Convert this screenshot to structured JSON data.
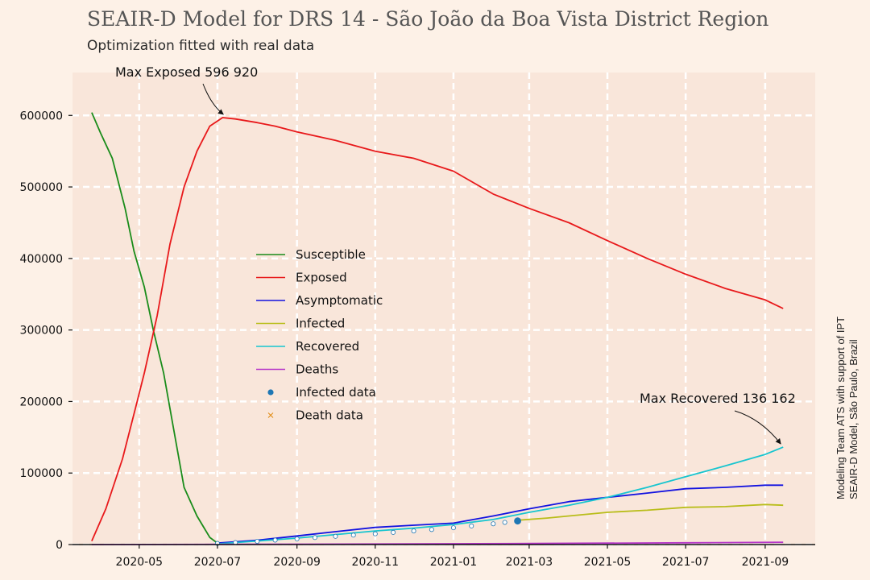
{
  "chart_data": {
    "type": "line",
    "title": "SEAIR-D Model for DRS 14 - São João da Boa Vista District Region",
    "subtitle": "Optimization fitted with real data",
    "xlabel": "",
    "ylabel": "",
    "x_ticks": [
      "2020-05",
      "2020-07",
      "2020-09",
      "2020-11",
      "2021-01",
      "2021-03",
      "2021-05",
      "2021-07",
      "2021-09"
    ],
    "y_ticks": [
      "0",
      "100000",
      "200000",
      "300000",
      "400000",
      "500000",
      "600000"
    ],
    "xlim": [
      "2020-03-10",
      "2021-10-10"
    ],
    "ylim": [
      0,
      660000
    ],
    "grid": true,
    "legend_position": "center-left",
    "series": [
      {
        "name": "Susceptible",
        "color": "#1a8c1a",
        "kind": "line",
        "x": [
          "2020-03-25",
          "2020-04-01",
          "2020-04-10",
          "2020-04-20",
          "2020-04-27",
          "2020-05-05",
          "2020-05-12",
          "2020-05-20",
          "2020-05-27",
          "2020-06-05",
          "2020-06-15",
          "2020-06-25",
          "2020-07-01"
        ],
        "y": [
          604000,
          575000,
          540000,
          470000,
          410000,
          360000,
          300000,
          240000,
          170000,
          80000,
          40000,
          10000,
          2000
        ]
      },
      {
        "name": "Exposed",
        "color": "#e8191b",
        "kind": "line",
        "x": [
          "2020-03-25",
          "2020-04-05",
          "2020-04-18",
          "2020-04-28",
          "2020-05-05",
          "2020-05-15",
          "2020-05-25",
          "2020-06-05",
          "2020-06-15",
          "2020-06-25",
          "2020-07-05",
          "2020-07-15",
          "2020-08-01",
          "2020-08-15",
          "2020-09-01",
          "2020-10-01",
          "2020-11-01",
          "2020-12-01",
          "2021-01-01",
          "2021-02-01",
          "2021-03-01",
          "2021-04-01",
          "2021-05-01",
          "2021-06-01",
          "2021-07-01",
          "2021-08-01",
          "2021-09-01",
          "2021-09-15"
        ],
        "y": [
          5000,
          50000,
          120000,
          190000,
          240000,
          320000,
          420000,
          500000,
          550000,
          585000,
          596920,
          595000,
          590000,
          585000,
          577000,
          565000,
          550000,
          540000,
          522000,
          490000,
          470000,
          450000,
          425000,
          400000,
          378000,
          358000,
          342000,
          330000
        ]
      },
      {
        "name": "Asymptomatic",
        "color": "#1212e0",
        "kind": "line",
        "x": [
          "2020-07-01",
          "2020-08-01",
          "2020-09-01",
          "2020-10-01",
          "2020-11-01",
          "2020-12-01",
          "2021-01-01",
          "2021-02-01",
          "2021-03-01",
          "2021-04-01",
          "2021-05-01",
          "2021-06-01",
          "2021-07-01",
          "2021-08-01",
          "2021-09-01",
          "2021-09-15"
        ],
        "y": [
          2000,
          6000,
          12000,
          18000,
          24000,
          27000,
          30000,
          40000,
          50000,
          60000,
          66000,
          72000,
          78000,
          80000,
          83000,
          83000
        ]
      },
      {
        "name": "Infected",
        "color": "#b9bd1a",
        "kind": "line",
        "x": [
          "2021-02-20",
          "2021-03-15",
          "2021-04-01",
          "2021-05-01",
          "2021-06-01",
          "2021-07-01",
          "2021-08-01",
          "2021-09-01",
          "2021-09-15"
        ],
        "y": [
          34000,
          37000,
          40000,
          45000,
          48000,
          52000,
          53000,
          56000,
          55000
        ]
      },
      {
        "name": "Recovered",
        "color": "#17c5cf",
        "kind": "line",
        "x": [
          "2020-07-01",
          "2020-08-01",
          "2020-09-01",
          "2020-10-01",
          "2020-11-01",
          "2020-12-01",
          "2021-01-01",
          "2021-02-01",
          "2021-03-01",
          "2021-04-01",
          "2021-05-01",
          "2021-06-01",
          "2021-07-01",
          "2021-08-01",
          "2021-09-01",
          "2021-09-15"
        ],
        "y": [
          1000,
          5000,
          9000,
          14000,
          19000,
          23000,
          28000,
          35000,
          45000,
          55000,
          66000,
          80000,
          95000,
          110000,
          126000,
          136162
        ]
      },
      {
        "name": "Deaths",
        "color": "#b634c9",
        "kind": "line",
        "x": [
          "2020-03-25",
          "2020-07-01",
          "2020-11-01",
          "2021-03-01",
          "2021-07-01",
          "2021-09-15"
        ],
        "y": [
          0,
          300,
          800,
          1500,
          2500,
          3200
        ]
      },
      {
        "name": "Infected data",
        "color": "#1f77b4",
        "kind": "scatter",
        "x": [
          "2020-07-01",
          "2020-07-15",
          "2020-08-01",
          "2020-08-15",
          "2020-09-01",
          "2020-09-15",
          "2020-10-01",
          "2020-10-15",
          "2020-11-01",
          "2020-11-15",
          "2020-12-01",
          "2020-12-15",
          "2021-01-01",
          "2021-01-15",
          "2021-02-01",
          "2021-02-10",
          "2021-02-20"
        ],
        "y": [
          1500,
          2800,
          4500,
          6200,
          8000,
          9800,
          11500,
          13200,
          15000,
          17000,
          19000,
          21000,
          23500,
          26000,
          29000,
          31000,
          33000
        ]
      },
      {
        "name": "Death data",
        "color": "#e08a12",
        "kind": "scatter",
        "x": [],
        "y": []
      }
    ],
    "annotations": [
      {
        "text": "Max Exposed 596 920",
        "x": "2020-07-05",
        "y": 596920
      },
      {
        "text": "Max Recovered 136 162",
        "x": "2021-09-15",
        "y": 136162
      }
    ],
    "side_text": [
      "Modeling Team ATS with support of IPT",
      "SEAIR-D Model, São Paulo, Brazil"
    ]
  }
}
